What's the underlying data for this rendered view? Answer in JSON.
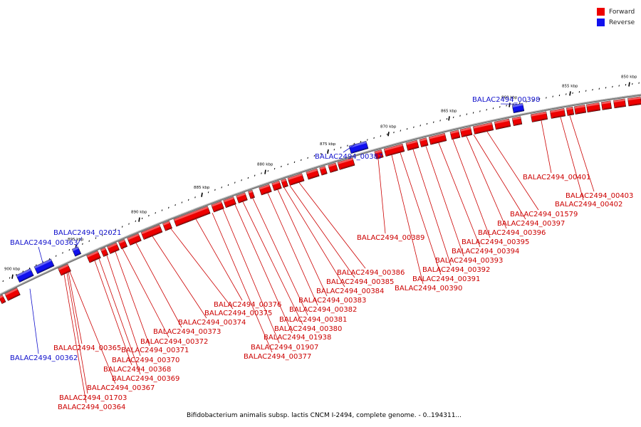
{
  "legend": {
    "forward_label": "Forward",
    "reverse_label": "Reverse",
    "forward_color": "#ee0000",
    "reverse_color": "#1111ee"
  },
  "colors": {
    "forward": "#ee0000",
    "reverse": "#1111ee",
    "backbone": "#888888",
    "forward_label": "#cc0000",
    "reverse_label": "#1111cc"
  },
  "caption": "Bifidobacterium animalis subsp. lactis CNCM I-2494, complete genome. - 0..194311...",
  "ruler": [
    {
      "label": "900 kbp"
    },
    {
      "label": "895 kbp"
    },
    {
      "label": "890 kbp"
    },
    {
      "label": "885 kbp"
    },
    {
      "label": "880 kbp"
    },
    {
      "label": "875 kbp"
    },
    {
      "label": "870 kbp"
    },
    {
      "label": "865 kbp"
    },
    {
      "label": "860 kbp"
    },
    {
      "label": "855 kbp"
    },
    {
      "label": "850 kbp"
    }
  ],
  "reverse_genes": [
    "BALAC2494_00362",
    "BALAC2494_00363",
    "BALAC2494_02021",
    "BALAC2494_00387",
    "BALAC2494_00398"
  ],
  "forward_genes": [
    "BALAC2494_00364",
    "BALAC2494_01703",
    "BALAC2494_00367",
    "BALAC2494_00368",
    "BALAC2494_00369",
    "BALAC2494_00365",
    "BALAC2494_00370",
    "BALAC2494_00371",
    "BALAC2494_00372",
    "BALAC2494_00373",
    "BALAC2494_00374",
    "BALAC2494_00375",
    "BALAC2494_00376",
    "BALAC2494_00377",
    "BALAC2494_01907",
    "BALAC2494_01938",
    "BALAC2494_00380",
    "BALAC2494_00381",
    "BALAC2494_00382",
    "BALAC2494_00383",
    "BALAC2494_00384",
    "BALAC2494_00385",
    "BALAC2494_00386",
    "BALAC2494_00389",
    "BALAC2494_00390",
    "BALAC2494_00391",
    "BALAC2494_00392",
    "BALAC2494_00393",
    "BALAC2494_00394",
    "BALAC2494_00395",
    "BALAC2494_00396",
    "BALAC2494_00397",
    "BALAC2494_01579",
    "BALAC2494_00402",
    "BALAC2494_00403",
    "BALAC2494_00401"
  ]
}
